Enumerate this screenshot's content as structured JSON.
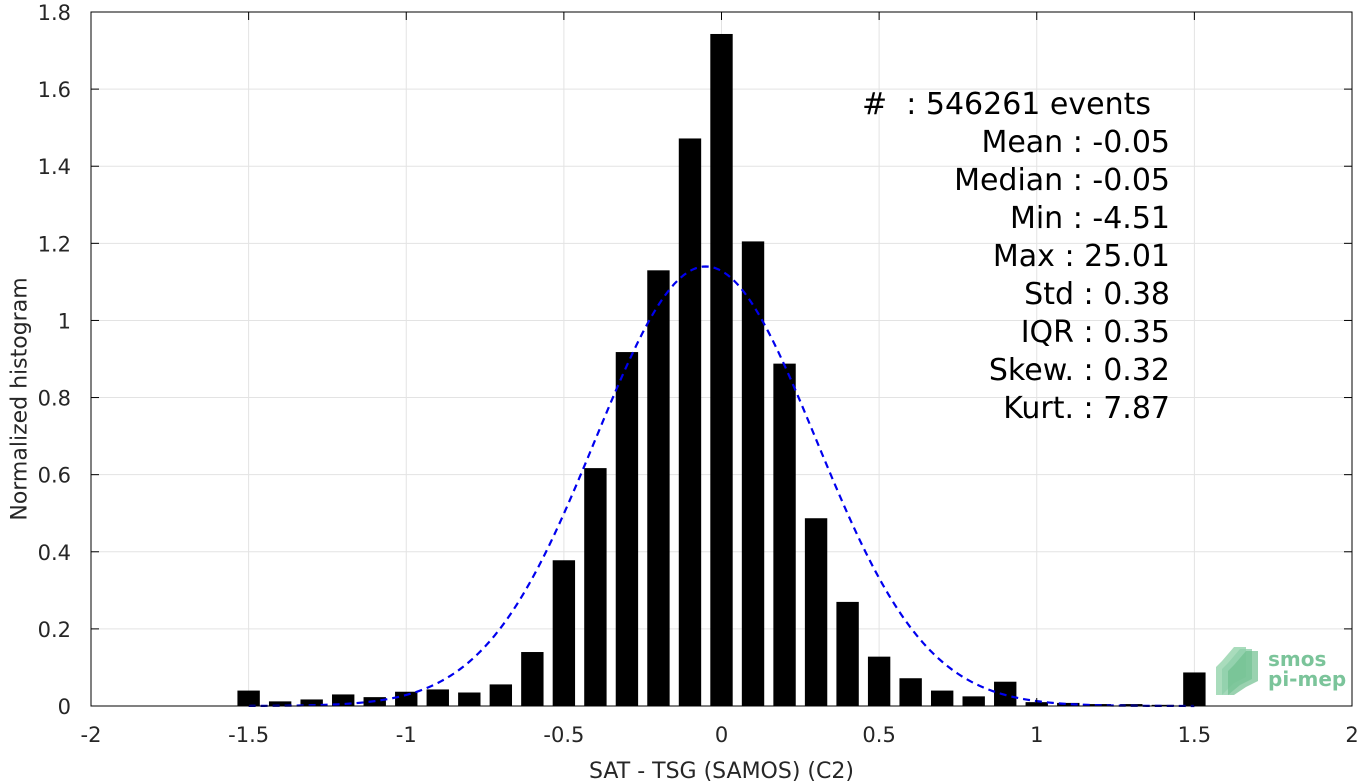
{
  "chart_data": {
    "type": "bar",
    "xlabel": "SAT - TSG (SAMOS) (C2)",
    "ylabel": "Normalized histogram",
    "xlim": [
      -2,
      2
    ],
    "ylim": [
      0,
      1.8
    ],
    "xticks": [
      "-2",
      "-1.5",
      "-1",
      "-0.5",
      "0",
      "0.5",
      "1",
      "1.5",
      "2"
    ],
    "yticks": [
      "0",
      "0.2",
      "0.4",
      "0.6",
      "0.8",
      "1",
      "1.2",
      "1.4",
      "1.6",
      "1.8"
    ],
    "grid": true,
    "bar_color": "#000000",
    "bin_centers": [
      -1.5,
      -1.4,
      -1.3,
      -1.2,
      -1.1,
      -1.0,
      -0.9,
      -0.8,
      -0.7,
      -0.6,
      -0.5,
      -0.4,
      -0.3,
      -0.2,
      -0.1,
      0.0,
      0.1,
      0.2,
      0.3,
      0.4,
      0.5,
      0.6,
      0.7,
      0.8,
      0.9,
      1.0,
      1.1,
      1.2,
      1.3,
      1.4,
      1.5
    ],
    "values": [
      0.04,
      0.012,
      0.017,
      0.03,
      0.023,
      0.037,
      0.043,
      0.035,
      0.056,
      0.14,
      0.378,
      0.617,
      0.918,
      1.13,
      1.472,
      1.743,
      1.205,
      0.888,
      0.487,
      0.27,
      0.128,
      0.072,
      0.04,
      0.025,
      0.063,
      0.01,
      0.008,
      0.005,
      0.005,
      0.003,
      0.087
    ],
    "fit": {
      "style": "dashed",
      "color": "#0000ee",
      "mean": -0.05,
      "std": 0.35,
      "peak": 1.14
    }
  },
  "stats": {
    "events": "#  : 546261 events",
    "mean": "Mean : -0.05",
    "median": "Median : -0.05",
    "min": "Min : -4.51",
    "max": "Max : 25.01",
    "std": "Std : 0.38",
    "iqr": "IQR : 0.35",
    "skew": "Skew. : 0.32",
    "kurt": "Kurt. : 7.87"
  },
  "logo": {
    "line1": "smos",
    "line2": "pi-mep",
    "color": "#7bc49a"
  }
}
